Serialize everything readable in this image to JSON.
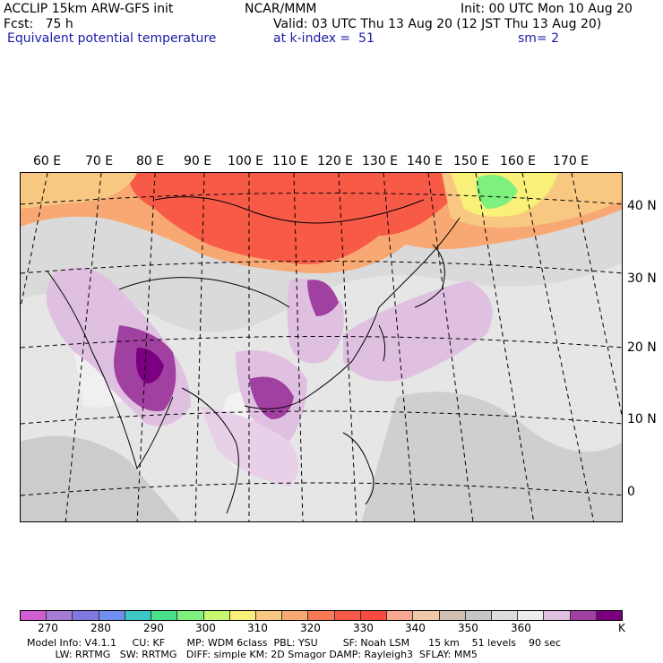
{
  "header": {
    "left1": "ACCLIP 15km ARW-GFS init",
    "center1": "NCAR/MMM",
    "right1": "Init: 00 UTC Mon 10 Aug 20",
    "left2": "Fcst:   75 h",
    "right2": "Valid: 03 UTC Thu 13 Aug 20 (12 JST Thu 13 Aug 20)",
    "field": "Equivalent potential temperature",
    "level": "at k-index =  51",
    "smooth": "sm= 2"
  },
  "map": {
    "lon_labels": [
      "60 E",
      "70 E",
      "80 E",
      "90 E",
      "100 E",
      "110 E",
      "120 E",
      "130 E",
      "140 E",
      "150 E",
      "160 E",
      "170 E"
    ],
    "lat_labels": [
      "40 N",
      "30 N",
      "20 N",
      "10 N",
      "0"
    ]
  },
  "colorbar": {
    "colors": [
      "#d15ed1",
      "#a57bd3",
      "#8078e0",
      "#6f8ef0",
      "#3cc6c6",
      "#48e08a",
      "#7ef07e",
      "#c8f870",
      "#f8f078",
      "#f8c882",
      "#f8a872",
      "#f87b55",
      "#f85a48",
      "#f84a40",
      "#f8a890",
      "#f0c8a8",
      "#d0c0b4",
      "#c6c6c6",
      "#dcdcdc",
      "#ececec",
      "#e0c0e0",
      "#a040a0",
      "#7a0080"
    ],
    "tick_labels": [
      "270",
      "280",
      "290",
      "300",
      "310",
      "320",
      "330",
      "340",
      "350",
      "360"
    ],
    "unit": "K"
  },
  "footer": {
    "line1": "Model Info: V4.1.1     CU: KF       MP: WDM 6class  PBL: YSU        SF: Noah LSM      15 km    51 levels    90 sec",
    "line2": "         LW: RRTMG   SW: RRTMG   DIFF: simple KM: 2D Smagor DAMP: Rayleigh3  SFLAY: MM5"
  }
}
